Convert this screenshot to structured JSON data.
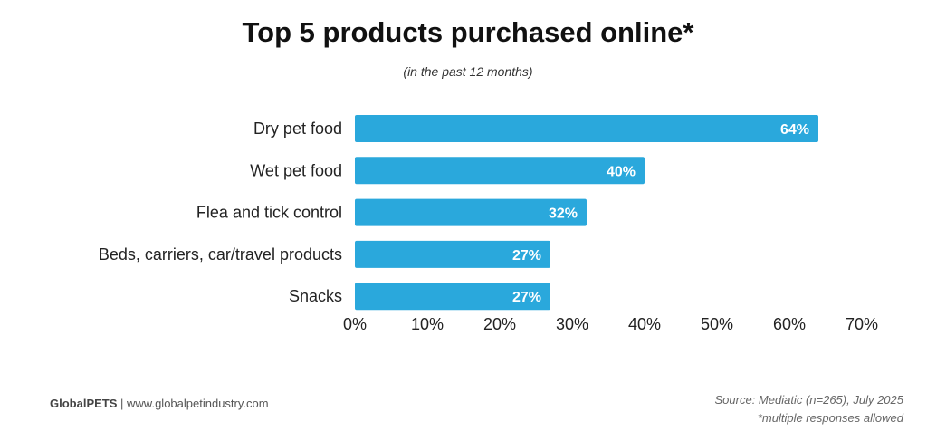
{
  "chart_data": {
    "type": "bar",
    "orientation": "horizontal",
    "title": "Top 5 products purchased online*",
    "subtitle": "(in the past 12 months)",
    "categories": [
      "Dry pet food",
      "Wet pet food",
      "Flea and tick control",
      "Beds, carriers, car/travel products",
      "Snacks"
    ],
    "values": [
      64,
      40,
      32,
      27,
      27
    ],
    "data_labels": [
      "64%",
      "40%",
      "32%",
      "27%",
      "27%"
    ],
    "xlim": [
      0,
      70
    ],
    "xticks": [
      "0%",
      "10%",
      "20%",
      "30%",
      "40%",
      "50%",
      "60%",
      "70%"
    ],
    "grid": false,
    "bar_color": "#2aa8dc"
  },
  "footer": {
    "brand": "GlobalPETS",
    "website": "www.globalpetindustry.com",
    "source": "Source: Mediatic (n=265), July 2025",
    "note": "*multiple responses allowed"
  }
}
